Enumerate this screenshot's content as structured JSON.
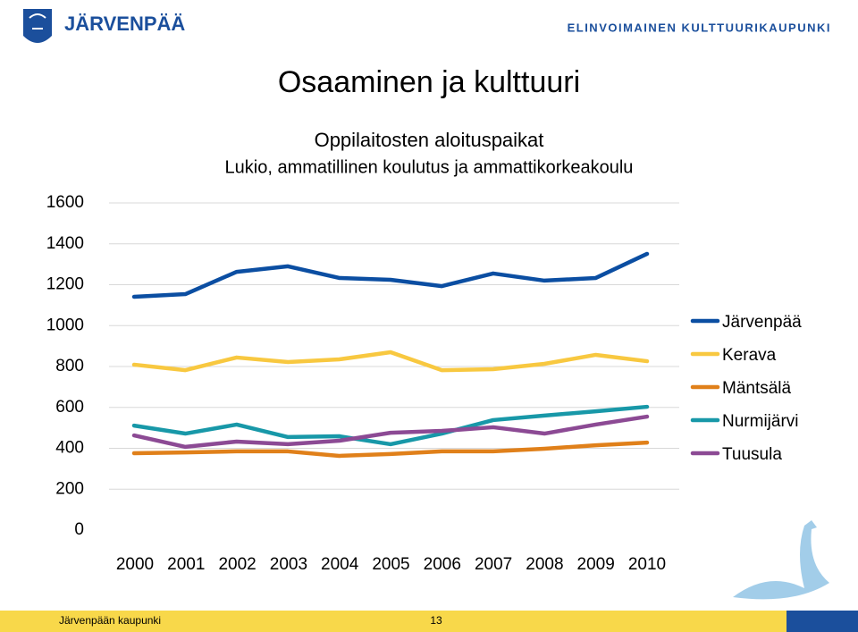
{
  "slide": {
    "logo": "JÄRVENPÄÄ",
    "tagline": "ELINVOIMAINEN KULTTUURIKAUPUNKI",
    "heading": "Osaaminen ja kulttuuri",
    "footer": "Järvenpään kaupunki",
    "page": "13"
  },
  "chart_data": {
    "type": "line",
    "title": "Oppilaitosten aloituspaikat",
    "subtitle": "Lukio, ammatillinen koulutus ja ammattikorkeakoulu",
    "categories": [
      "2000",
      "2001",
      "2002",
      "2003",
      "2004",
      "2005",
      "2006",
      "2007",
      "2008",
      "2009",
      "2010"
    ],
    "series": [
      {
        "name": "Järvenpää",
        "color": "#0b4ea2",
        "values": [
          1141,
          1154,
          1263,
          1290,
          1233,
          1224,
          1193,
          1255,
          1220,
          1233,
          1351
        ]
      },
      {
        "name": "Kerava",
        "color": "#f8c840",
        "values": [
          809,
          782,
          844,
          822,
          835,
          870,
          782,
          787,
          813,
          857,
          826
        ]
      },
      {
        "name": "Mäntsälä",
        "color": "#e0801a",
        "values": [
          376,
          380,
          385,
          385,
          363,
          372,
          385,
          385,
          398,
          415,
          428
        ]
      },
      {
        "name": "Nurmijärvi",
        "color": "#1898a8",
        "values": [
          511,
          472,
          516,
          455,
          459,
          420,
          472,
          538,
          560,
          581,
          603
        ]
      },
      {
        "name": "Tuusula",
        "color": "#8c4a94",
        "values": [
          463,
          407,
          433,
          420,
          437,
          476,
          485,
          503,
          472,
          516,
          555
        ]
      }
    ],
    "ylim": [
      0,
      1600
    ],
    "yticks": [
      0,
      200,
      400,
      600,
      800,
      1000,
      1200,
      1400,
      1600
    ],
    "grid": true,
    "legend": "right"
  }
}
